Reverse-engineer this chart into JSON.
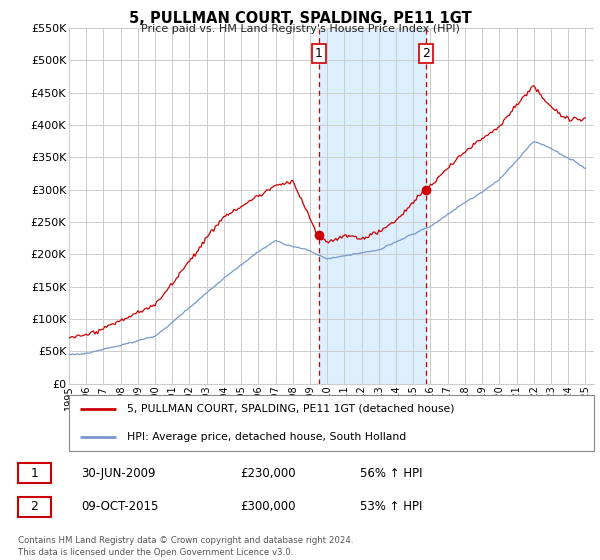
{
  "title": "5, PULLMAN COURT, SPALDING, PE11 1GT",
  "subtitle": "Price paid vs. HM Land Registry's House Price Index (HPI)",
  "ylim": [
    0,
    550000
  ],
  "xlim_start": 1995.0,
  "xlim_end": 2025.5,
  "transaction1": {
    "date_num": 2009.5,
    "price": 230000,
    "label": "1",
    "text": "30-JUN-2009",
    "pct": "56% ↑ HPI"
  },
  "transaction2": {
    "date_num": 2015.75,
    "price": 300000,
    "label": "2",
    "text": "09-OCT-2015",
    "pct": "53% ↑ HPI"
  },
  "red_line_color": "#cc0000",
  "blue_line_color": "#7799cc",
  "shade_color": "#ddeeff",
  "grid_color": "#cccccc",
  "legend_label_red": "5, PULLMAN COURT, SPALDING, PE11 1GT (detached house)",
  "legend_label_blue": "HPI: Average price, detached house, South Holland",
  "footnote": "Contains HM Land Registry data © Crown copyright and database right 2024.\nThis data is licensed under the Open Government Licence v3.0.",
  "table_row1": [
    "1",
    "30-JUN-2009",
    "£230,000",
    "56% ↑ HPI"
  ],
  "table_row2": [
    "2",
    "09-OCT-2015",
    "£300,000",
    "53% ↑ HPI"
  ]
}
